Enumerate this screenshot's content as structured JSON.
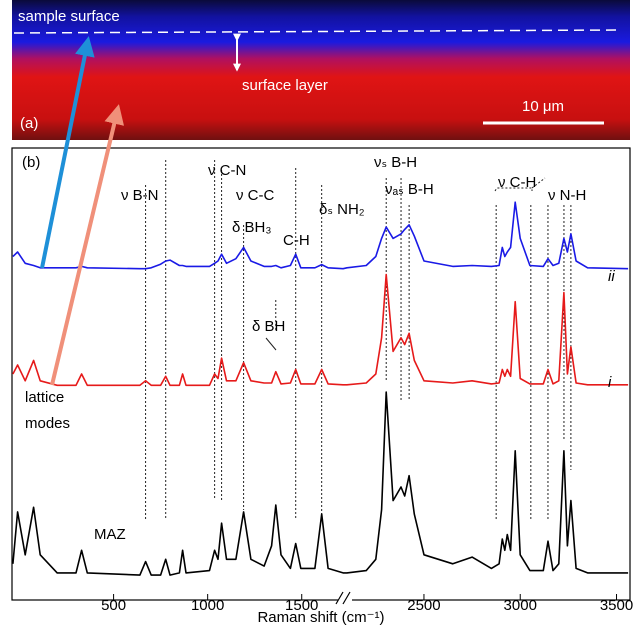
{
  "panel_a": {
    "label": "(a)",
    "top_label": "sample surface",
    "layer_label": "surface layer",
    "scale_label": "10 μm"
  },
  "chart_data": {
    "type": "line",
    "panel_label": "(b)",
    "xlabel": "Raman shift (cm⁻¹)",
    "segments": [
      {
        "xlim": [
          -40,
          1730
        ],
        "xticks": [
          500,
          1000,
          1500
        ]
      },
      {
        "xlim": [
          2090,
          3570
        ],
        "xticks": [
          2500,
          3000,
          3500
        ]
      }
    ],
    "ylim": [
      0,
      100
    ],
    "x": [
      -35,
      -10,
      30,
      75,
      110,
      200,
      300,
      330,
      360,
      640,
      670,
      700,
      750,
      777,
      800,
      850,
      867,
      885,
      1010,
      1037,
      1055,
      1074,
      1100,
      1150,
      1191,
      1230,
      1300,
      1340,
      1362,
      1390,
      1440,
      1468,
      1495,
      1570,
      1606,
      1640,
      1720,
      2100,
      2200,
      2250,
      2280,
      2304,
      2340,
      2381,
      2400,
      2423,
      2450,
      2500,
      2650,
      2750,
      2850,
      2890,
      2907,
      2920,
      2933,
      2950,
      2974,
      3000,
      3050,
      3120,
      3144,
      3170,
      3200,
      3227,
      3245,
      3263,
      3290,
      3350,
      3560
    ],
    "series": [
      {
        "name": "ii",
        "color": "#1a1ae6",
        "values": [
          76,
          77,
          74.5,
          74,
          73.5,
          73.5,
          73.5,
          73.8,
          73.5,
          73.3,
          73.3,
          73.5,
          74.3,
          75,
          75.2,
          74,
          74,
          73.8,
          73.8,
          74.5,
          75,
          76.5,
          74.5,
          75.5,
          78,
          75,
          73.8,
          73.8,
          74,
          73.5,
          74,
          76.5,
          73.5,
          73.5,
          74.2,
          73.5,
          73.3,
          73.5,
          74,
          76,
          80,
          82.5,
          80,
          81,
          82,
          83,
          80.5,
          75,
          73.8,
          74,
          73.8,
          74,
          78,
          76,
          77,
          78,
          88,
          80,
          74,
          73.8,
          75.5,
          74,
          74.5,
          80,
          77,
          81,
          75,
          73.5,
          73.3
        ]
      },
      {
        "name": "i",
        "color": "#e61a1a",
        "values": [
          50,
          52,
          48.5,
          53,
          48.5,
          47.5,
          47.5,
          50,
          47.5,
          47.5,
          48.5,
          47.5,
          47.5,
          49.5,
          47.5,
          47.5,
          50,
          47.5,
          47.5,
          50,
          49,
          53.5,
          48.5,
          48.5,
          52.5,
          48.5,
          48,
          48,
          50.5,
          47.8,
          48,
          51,
          47.8,
          47.8,
          51,
          47.8,
          47.6,
          47.6,
          48,
          50,
          58,
          72,
          55,
          58,
          56.5,
          59,
          53,
          48.5,
          48,
          48.5,
          47.8,
          48,
          51,
          49.5,
          51,
          49.5,
          66,
          49,
          47.8,
          47.8,
          51,
          47.8,
          48.5,
          68,
          50,
          56,
          48,
          47.6,
          47.6
        ]
      },
      {
        "name": "MAZ",
        "color": "#000000",
        "values": [
          8,
          19.5,
          10,
          20.5,
          10,
          6,
          6,
          11,
          6,
          5.5,
          8.5,
          5.5,
          5.5,
          9,
          5.5,
          6,
          11,
          6,
          6.5,
          11,
          9,
          17,
          9,
          9,
          19.5,
          9,
          7.5,
          12,
          21,
          10,
          7,
          12.5,
          7,
          7,
          19,
          7,
          6,
          6,
          6.5,
          9,
          20,
          46,
          22,
          25,
          23,
          27.5,
          19,
          10,
          8,
          9.5,
          7,
          8,
          13.5,
          11,
          14.5,
          11,
          33,
          10,
          6.5,
          6.5,
          13,
          6.5,
          8,
          33,
          12,
          22,
          7,
          6,
          6
        ]
      }
    ],
    "peak_markers": [
      670,
      777,
      1037,
      1074,
      1191,
      1362,
      1468,
      1606,
      2304,
      2381,
      2423,
      2875,
      3055,
      3144,
      3227,
      3263
    ],
    "annotations": [
      "ν B-N",
      "ν C-N",
      "ν C-C",
      "δ BH₃",
      "C-H",
      "δₛ NH₂",
      "νₛ B-H",
      "νₐₛ B-H",
      "ν C-H",
      "ν N-H",
      "δ BH",
      "lattice",
      "modes"
    ]
  }
}
